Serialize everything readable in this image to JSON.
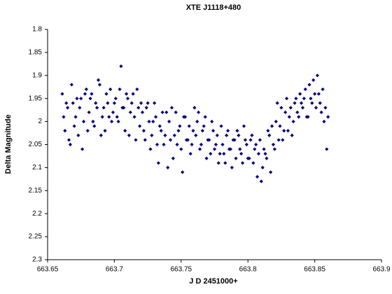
{
  "chart_data": {
    "type": "scatter",
    "title": "XTE J1118+480",
    "x_label": "J D 2451000+",
    "y_label": "Delta Magnitude",
    "xlim": [
      663.65,
      663.9
    ],
    "xticks": [
      663.65,
      663.7,
      663.75,
      663.8,
      663.85,
      663.9
    ],
    "ylim": [
      2.3,
      1.8
    ],
    "yticks": [
      1.8,
      1.85,
      1.9,
      1.95,
      2,
      2.05,
      2.1,
      2.15,
      2.2,
      2.25,
      2.3
    ],
    "series": [
      {
        "color": "#000080",
        "x": [
          663.661,
          663.663,
          663.665,
          663.667,
          663.669,
          663.671,
          663.673,
          663.675,
          663.677,
          663.679,
          663.681,
          663.683,
          663.685,
          663.687,
          663.689,
          663.691,
          663.693,
          663.695,
          663.697,
          663.699,
          663.701,
          663.703,
          663.705,
          663.707,
          663.709,
          663.711,
          663.713,
          663.715,
          663.717,
          663.719,
          663.721,
          663.723,
          663.725,
          663.727,
          663.729,
          663.731,
          663.733,
          663.735,
          663.737,
          663.739,
          663.741,
          663.743,
          663.745,
          663.747,
          663.749,
          663.751,
          663.753,
          663.755,
          663.757,
          663.759,
          663.761,
          663.763,
          663.765,
          663.767,
          663.769,
          663.771,
          663.773,
          663.775,
          663.777,
          663.779,
          663.781,
          663.783,
          663.785,
          663.787,
          663.789,
          663.791,
          663.793,
          663.795,
          663.797,
          663.799,
          663.801,
          663.803,
          663.805,
          663.807,
          663.809,
          663.811,
          663.813,
          663.815,
          663.817,
          663.819,
          663.821,
          663.823,
          663.825,
          663.827,
          663.829,
          663.831,
          663.833,
          663.835,
          663.837,
          663.839,
          663.841,
          663.843,
          663.845,
          663.847,
          663.849,
          663.851,
          663.853,
          663.855,
          663.857,
          663.859,
          663.662,
          663.664,
          663.666,
          663.668,
          663.67,
          663.672,
          663.674,
          663.676,
          663.678,
          663.68,
          663.682,
          663.684,
          663.686,
          663.688,
          663.69,
          663.692,
          663.694,
          663.696,
          663.698,
          663.7,
          663.702,
          663.704,
          663.706,
          663.708,
          663.71,
          663.712,
          663.714,
          663.716,
          663.718,
          663.72,
          663.722,
          663.724,
          663.726,
          663.728,
          663.73,
          663.732,
          663.734,
          663.736,
          663.738,
          663.74,
          663.742,
          663.744,
          663.746,
          663.748,
          663.75,
          663.752,
          663.754,
          663.756,
          663.758,
          663.76,
          663.762,
          663.764,
          663.766,
          663.768,
          663.77,
          663.772,
          663.774,
          663.776,
          663.778,
          663.78,
          663.782,
          663.784,
          663.786,
          663.788,
          663.79,
          663.792,
          663.794,
          663.796,
          663.798,
          663.8,
          663.802,
          663.804,
          663.806,
          663.808,
          663.81,
          663.812,
          663.814,
          663.816,
          663.818,
          663.82,
          663.822,
          663.824,
          663.826,
          663.828,
          663.83,
          663.832,
          663.834,
          663.836,
          663.838,
          663.84,
          663.842,
          663.844,
          663.846,
          663.848,
          663.85,
          663.852,
          663.854,
          663.856,
          663.858,
          663.86
        ],
        "values": [
          1.94,
          2.02,
          1.97,
          2.05,
          1.96,
          1.99,
          2.03,
          1.95,
          2.0,
          1.93,
          1.98,
          1.94,
          2.01,
          1.97,
          1.92,
          1.99,
          2.02,
          1.96,
          1.93,
          1.98,
          1.95,
          2.0,
          1.88,
          1.97,
          1.94,
          2.03,
          1.96,
          1.99,
          1.93,
          2.01,
          1.98,
          2.04,
          1.96,
          2.06,
          2.0,
          1.99,
          2.09,
          2.02,
          2.05,
          1.98,
          2.0,
          1.97,
          2.03,
          2.05,
          2.01,
          2.11,
          1.99,
          2.04,
          2.07,
          2.02,
          2.03,
          1.98,
          2.05,
          2.01,
          2.08,
          2.04,
          2.0,
          2.06,
          2.03,
          2.07,
          2.05,
          2.09,
          2.02,
          2.06,
          2.04,
          2.08,
          2.03,
          2.07,
          2.01,
          2.05,
          2.08,
          2.03,
          2.06,
          2.12,
          2.04,
          2.1,
          2.07,
          2.02,
          2.11,
          2.05,
          2.0,
          2.04,
          1.97,
          2.02,
          1.95,
          1.99,
          2.03,
          1.96,
          1.98,
          1.94,
          1.97,
          1.93,
          1.99,
          1.95,
          1.91,
          1.97,
          1.94,
          1.98,
          2.0,
          2.06,
          1.99,
          1.96,
          2.04,
          1.92,
          2.01,
          1.95,
          1.97,
          2.06,
          1.94,
          2.02,
          1.95,
          2.0,
          1.96,
          1.91,
          2.03,
          1.97,
          1.94,
          1.99,
          2.0,
          1.96,
          1.99,
          1.93,
          1.97,
          2.02,
          1.95,
          1.98,
          1.94,
          2.04,
          1.97,
          1.96,
          2.02,
          1.97,
          2.0,
          2.03,
          1.96,
          2.05,
          2.01,
          1.98,
          2.03,
          2.1,
          2.04,
          2.08,
          1.98,
          2.02,
          2.06,
          1.99,
          2.04,
          2.01,
          2.05,
          1.97,
          2.0,
          2.06,
          2.02,
          1.99,
          2.04,
          2.07,
          2.02,
          2.05,
          2.09,
          2.01,
          2.07,
          2.03,
          2.06,
          2.1,
          2.04,
          2.02,
          2.06,
          2.09,
          2.04,
          2.08,
          2.04,
          2.09,
          2.05,
          2.07,
          2.13,
          2.06,
          2.08,
          2.03,
          2.01,
          2.06,
          1.96,
          2.01,
          2.04,
          1.98,
          2.02,
          1.97,
          2.0,
          1.95,
          1.99,
          1.96,
          1.95,
          1.99,
          1.92,
          1.96,
          1.94,
          1.9,
          1.96,
          1.93,
          1.97,
          1.99
        ]
      }
    ]
  }
}
